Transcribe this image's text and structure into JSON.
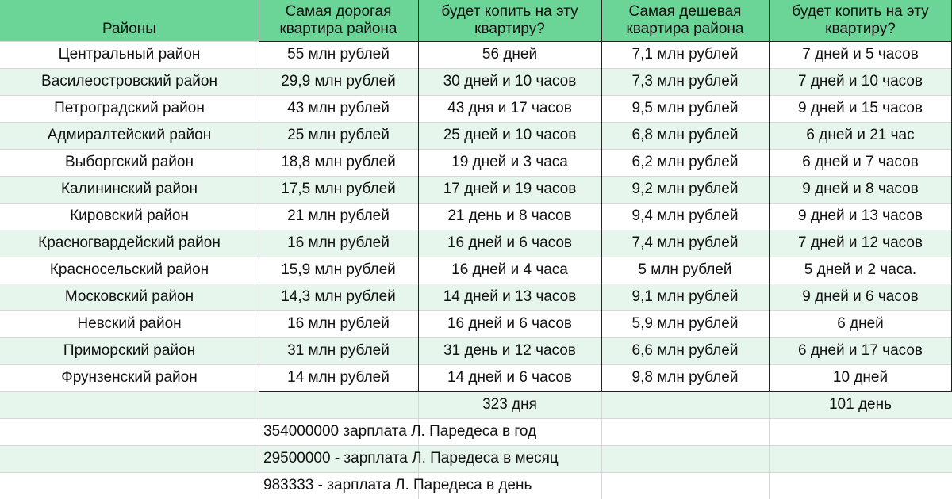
{
  "table": {
    "header": [
      "Районы",
      "Самая дорогая квартира района",
      "будет копить на эту квартиру?",
      "Самая дешевая квартира района",
      "будет копить на эту квартиру?"
    ],
    "rows": [
      [
        "Центральный район",
        "55 млн рублей",
        "56 дней",
        "7,1 млн рублей",
        "7 дней и 5 часов"
      ],
      [
        "Василеостровский район",
        "29,9 млн рублей",
        "30 дней и 10 часов",
        "7,3 млн рублей",
        "7 дней и 10 часов"
      ],
      [
        "Петроградский район",
        "43 млн рублей",
        "43 дня и 17 часов",
        "9,5 млн рублей",
        "9 дней и 15 часов"
      ],
      [
        "Адмиралтейский район",
        "25 млн рублей",
        "25 дней и 10 часов",
        "6,8 млн рублей",
        "6 дней и 21 час"
      ],
      [
        "Выборгский район",
        "18,8 млн рублей",
        "19 дней и 3 часа",
        "6,2 млн рублей",
        "6 дней и 7 часов"
      ],
      [
        "Калининский район",
        "17,5 млн рублей",
        "17 дней и 19 часов",
        "9,2 млн рублей",
        "9 дней и 8 часов"
      ],
      [
        "Кировский район",
        "21 млн рублей",
        "21 день и 8 часов",
        "9,4 млн рублей",
        "9 дней и 13 часов"
      ],
      [
        "Красногвардейский район",
        "16 млн рублей",
        "16 дней и 6 часов",
        "7,4 млн рублей",
        "7 дней и 12 часов"
      ],
      [
        "Красносельский район",
        "15,9 млн рублей",
        "16 дней и 4 часа",
        "5 млн рублей",
        "5 дней и 2 часа."
      ],
      [
        "Московский район",
        "14,3 млн рублей",
        "14 дней и 13 часов",
        "9,1 млн рублей",
        "9 дней и 6 часов"
      ],
      [
        "Невский район",
        "16 млн рублей",
        "16 дней и 6 часов",
        "5,9 млн рублей",
        "6 дней"
      ],
      [
        "Приморский район",
        "31 млн рублей",
        "31 день и 12 часов",
        "6,6 млн рублей",
        "6 дней и 17 часов"
      ],
      [
        "Фрунзенский район",
        "14 млн рублей",
        "14 дней и 6 часов",
        "9,8 млн рублей",
        "10 дней"
      ]
    ],
    "totals": {
      "2": "323 дня",
      "4": "101 день"
    },
    "notes": [
      "354000000 зарплата Л. Паредеса в год",
      "29500000 - зарплата Л. Паредеса в месяц",
      "983333 - зарплата Л. Паредеса в день"
    ]
  }
}
